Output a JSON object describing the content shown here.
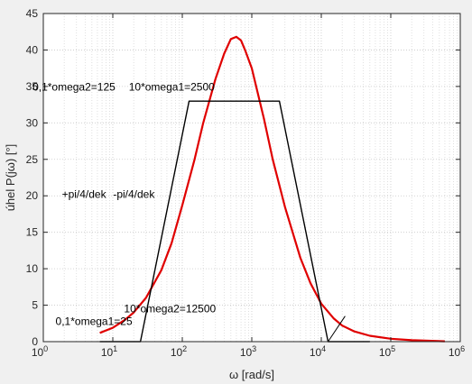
{
  "chart_data": {
    "type": "line",
    "xlabel": "ω [rad/s]",
    "ylabel": "úhel P(jω) [°]",
    "xscale": "log",
    "xlim": [
      1,
      1000000
    ],
    "ylim": [
      0,
      45
    ],
    "grid": true,
    "minor_grid": true,
    "x_ticks": [
      {
        "value": 1,
        "base": "10",
        "exp": "0"
      },
      {
        "value": 10,
        "base": "10",
        "exp": "1"
      },
      {
        "value": 100,
        "base": "10",
        "exp": "2"
      },
      {
        "value": 1000,
        "base": "10",
        "exp": "3"
      },
      {
        "value": 10000,
        "base": "10",
        "exp": "4"
      },
      {
        "value": 100000,
        "base": "10",
        "exp": "5"
      },
      {
        "value": 1000000,
        "base": "10",
        "exp": "6"
      }
    ],
    "y_ticks": [
      0,
      5,
      10,
      15,
      20,
      25,
      30,
      35,
      40,
      45
    ],
    "series": [
      {
        "color": "#e00000",
        "width": 2.2,
        "x": [
          6.5,
          10,
          15,
          20,
          30,
          50,
          70,
          100,
          150,
          200,
          300,
          400,
          500,
          600,
          700,
          800,
          1000,
          1500,
          2000,
          3000,
          5000,
          7000,
          10000,
          15000,
          20000,
          30000,
          50000,
          100000,
          200000,
          600000
        ],
        "y": [
          1.2,
          1.9,
          3.0,
          4.0,
          6.0,
          9.8,
          13.5,
          18.7,
          25.0,
          30.0,
          36.0,
          39.5,
          41.5,
          41.8,
          41.3,
          40.0,
          37.5,
          30.5,
          25.0,
          18.5,
          11.5,
          8.0,
          5.2,
          3.2,
          2.2,
          1.4,
          0.8,
          0.4,
          0.2,
          0.05
        ]
      },
      {
        "color": "#000000",
        "width": 1.4,
        "x": [
          6.5,
          25,
          125,
          2500,
          12500,
          50000
        ],
        "y": [
          0,
          0,
          32.98,
          32.98,
          0,
          0
        ]
      },
      {
        "color": "#000000",
        "width": 1.0,
        "x": [
          12500,
          22000
        ],
        "y": [
          0,
          3.5
        ]
      }
    ],
    "annotations": [
      {
        "text": "0,1*omega2=125",
        "x": 0.7,
        "y": 34.4
      },
      {
        "text": "10*omega1=2500",
        "x": 17,
        "y": 34.4
      },
      {
        "text": "+pi/4/dek",
        "x": 1.85,
        "y": 19.7
      },
      {
        "text": "-pi/4/dek",
        "x": 10.1,
        "y": 19.7
      },
      {
        "text": "0,1*omega1=25",
        "x": 1.5,
        "y": 2.3
      },
      {
        "text": "10*omega2=12500",
        "x": 14.5,
        "y": 4.0
      }
    ]
  }
}
